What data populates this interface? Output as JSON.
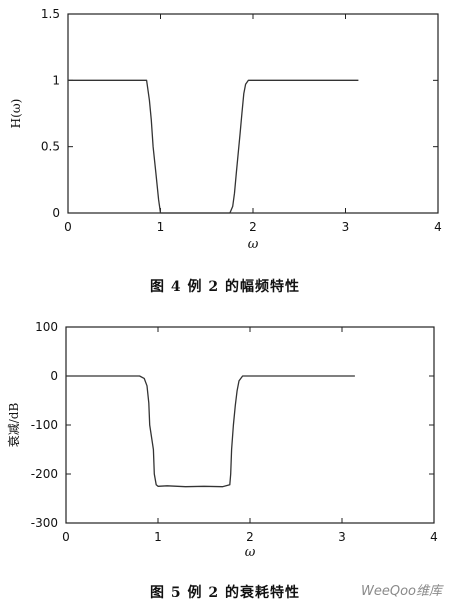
{
  "charts": {
    "fig4": {
      "caption": "图 4   例 2 的幅频特性",
      "xlabel": "ω",
      "ylabel": "H(ω)"
    },
    "fig5": {
      "caption": "图 5   例 2 的衰耗特性",
      "xlabel": "ω",
      "ylabel": "衰减/dB"
    }
  },
  "watermark": "WeeQoo维库",
  "chart_data": [
    {
      "type": "line",
      "title": "",
      "xlabel": "ω",
      "ylabel": "H(ω)",
      "xlim": [
        0,
        4
      ],
      "ylim": [
        0,
        1.5
      ],
      "xticks": [
        0,
        1,
        2,
        3,
        4
      ],
      "yticks": [
        0,
        0.5,
        1,
        1.5
      ],
      "grid": false,
      "series": [
        {
          "x": [
            0,
            0.2,
            0.4,
            0.6,
            0.8,
            0.85,
            0.88,
            0.9,
            0.92,
            0.95,
            0.98,
            1.0,
            1.05,
            1.2,
            1.4,
            1.6,
            1.75,
            1.78,
            1.8,
            1.82,
            1.84,
            1.86,
            1.88,
            1.9,
            1.92,
            1.95,
            2.1,
            2.4,
            2.7,
            3.0,
            3.14
          ],
          "y": [
            1,
            1,
            1,
            1,
            1,
            1,
            0.85,
            0.7,
            0.5,
            0.3,
            0.1,
            0,
            0,
            0,
            0,
            0,
            0,
            0.05,
            0.15,
            0.3,
            0.45,
            0.6,
            0.75,
            0.9,
            0.97,
            1,
            1,
            1,
            1,
            1,
            1
          ]
        }
      ]
    },
    {
      "type": "line",
      "title": "",
      "xlabel": "ω",
      "ylabel": "衰减/dB",
      "xlim": [
        0,
        4
      ],
      "ylim": [
        -300,
        100
      ],
      "xticks": [
        0,
        1,
        2,
        3,
        4
      ],
      "yticks": [
        -300,
        -200,
        -100,
        0,
        100
      ],
      "grid": false,
      "series": [
        {
          "x": [
            0,
            0.3,
            0.6,
            0.8,
            0.85,
            0.88,
            0.9,
            0.91,
            0.95,
            0.96,
            0.98,
            1.0,
            1.1,
            1.3,
            1.5,
            1.7,
            1.78,
            1.79,
            1.8,
            1.82,
            1.84,
            1.86,
            1.88,
            1.92,
            2.0,
            2.3,
            2.6,
            2.9,
            3.14
          ],
          "y": [
            0,
            0,
            0,
            0,
            -5,
            -20,
            -55,
            -100,
            -150,
            -200,
            -222,
            -225,
            -224,
            -226,
            -225,
            -226,
            -222,
            -200,
            -150,
            -100,
            -60,
            -30,
            -10,
            0,
            0,
            0,
            0,
            0,
            0
          ]
        }
      ]
    }
  ]
}
